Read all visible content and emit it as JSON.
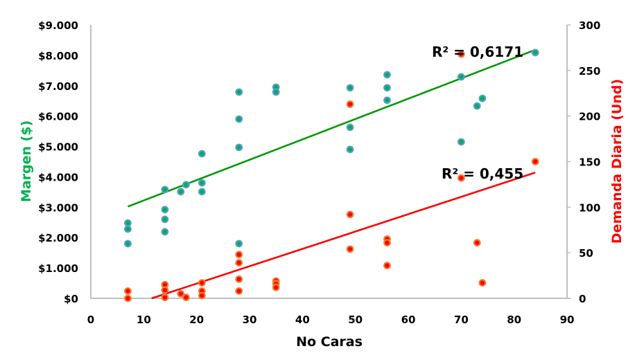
{
  "chart_data": {
    "type": "scatter",
    "title": "",
    "xlabel": "No Caras",
    "ylabel_left": "Margen ($)",
    "ylabel_right": "Demanda Diaria (Und)",
    "xlim": [
      0,
      90
    ],
    "ylim_left": [
      0,
      9000
    ],
    "ylim_right": [
      0,
      300
    ],
    "grid": false,
    "x_ticks": [
      "0",
      "10",
      "20",
      "30",
      "40",
      "50",
      "60",
      "70",
      "80",
      "90"
    ],
    "x_tick_values": [
      0,
      10,
      20,
      30,
      40,
      50,
      60,
      70,
      80,
      90
    ],
    "y_left_ticks": [
      "$0",
      "$1.000",
      "$2.000",
      "$3.000",
      "$4.000",
      "$5.000",
      "$6.000",
      "$7.000",
      "$8.000",
      "$9.000"
    ],
    "y_left_tick_values": [
      0,
      1000,
      2000,
      3000,
      4000,
      5000,
      6000,
      7000,
      8000,
      9000
    ],
    "y_right_ticks": [
      "0",
      "50",
      "100",
      "150",
      "200",
      "250",
      "300"
    ],
    "y_right_tick_values": [
      0,
      50,
      100,
      150,
      200,
      250,
      300
    ],
    "colors": {
      "margin_fill": "#00b050",
      "margin_outline": "#5b9bd5",
      "margin_trend": "#009900",
      "margin_title": "#00b050",
      "demand_fill": "#ff0000",
      "demand_outline": "#ed7d31",
      "demand_trend": "#ff0000",
      "demand_title": "#ff0000",
      "axis": "#bfbfbf"
    },
    "series": [
      {
        "name": "Margen",
        "axis": "left",
        "points": [
          [
            7,
            2480
          ],
          [
            7,
            2280
          ],
          [
            7,
            1800
          ],
          [
            14,
            3580
          ],
          [
            14,
            2920
          ],
          [
            14,
            2600
          ],
          [
            14,
            2190
          ],
          [
            17,
            3510
          ],
          [
            18,
            3740
          ],
          [
            21,
            4760
          ],
          [
            21,
            3800
          ],
          [
            21,
            3510
          ],
          [
            28,
            6790
          ],
          [
            28,
            5900
          ],
          [
            28,
            4970
          ],
          [
            28,
            1800
          ],
          [
            35,
            6950
          ],
          [
            35,
            6790
          ],
          [
            49,
            6930
          ],
          [
            49,
            5630
          ],
          [
            49,
            4900
          ],
          [
            56,
            7360
          ],
          [
            56,
            6930
          ],
          [
            56,
            6520
          ],
          [
            70,
            7290
          ],
          [
            70,
            5150
          ],
          [
            73,
            6330
          ],
          [
            74,
            6580
          ],
          [
            84,
            8090
          ]
        ],
        "trendline": {
          "type": "linear",
          "from": [
            7,
            3020
          ],
          "to": [
            84,
            8180
          ],
          "r2_label": "R² = 0,6171"
        }
      },
      {
        "name": "Demanda Diaria",
        "axis": "right",
        "points": [
          [
            7,
            8
          ],
          [
            7,
            0
          ],
          [
            14,
            15
          ],
          [
            14,
            9
          ],
          [
            14,
            1
          ],
          [
            17,
            5
          ],
          [
            18,
            1
          ],
          [
            21,
            17
          ],
          [
            21,
            8
          ],
          [
            21,
            3
          ],
          [
            28,
            48
          ],
          [
            28,
            39
          ],
          [
            28,
            21
          ],
          [
            28,
            8
          ],
          [
            35,
            19
          ],
          [
            35,
            16
          ],
          [
            35,
            12
          ],
          [
            49,
            213
          ],
          [
            49,
            92
          ],
          [
            49,
            54
          ],
          [
            56,
            65
          ],
          [
            56,
            61
          ],
          [
            56,
            36
          ],
          [
            70,
            268
          ],
          [
            70,
            132
          ],
          [
            73,
            61
          ],
          [
            74,
            17
          ],
          [
            84,
            150
          ]
        ],
        "trendline": {
          "type": "linear",
          "from": [
            11.5,
            0
          ],
          "to": [
            84,
            138
          ],
          "r2_label": "R² = 0,455"
        }
      }
    ]
  }
}
